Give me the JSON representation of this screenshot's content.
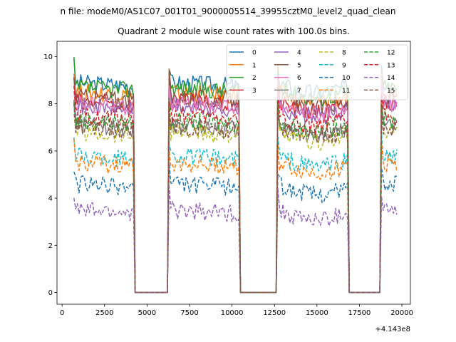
{
  "chart_data": {
    "type": "line",
    "suptitle": "n file: modeM0/AS1C07_001T01_9000005514_39955cztM0_level2_quad_clean",
    "title": "Quadrant 2 module wise count rates with 100.0s bins.",
    "xlabel": "",
    "ylabel": "",
    "x_offset_label": "+4.143e8",
    "xlim": [
      -300,
      20500
    ],
    "ylim": [
      -0.5,
      10.65
    ],
    "xticks": [
      0,
      2500,
      5000,
      7500,
      10000,
      12500,
      15000,
      17500,
      20000
    ],
    "xtick_labels": [
      "0",
      "2500",
      "5000",
      "7500",
      "10000",
      "12500",
      "15000",
      "17500",
      "20000"
    ],
    "yticks": [
      0,
      2,
      4,
      6,
      8,
      10
    ],
    "ytick_labels": [
      "0",
      "2",
      "4",
      "6",
      "8",
      "10"
    ],
    "bin_width": 100,
    "active_segments": [
      {
        "start": 700,
        "end": 4200
      },
      {
        "start": 6300,
        "end": 10400
      },
      {
        "start": 12700,
        "end": 16800
      },
      {
        "start": 18800,
        "end": 19700
      }
    ],
    "gap_value": 0,
    "legend": {
      "location": "upper right",
      "columns": 4
    },
    "series": [
      {
        "name": "0",
        "color": "#1f77b4",
        "style": "solid",
        "level": 8.9
      },
      {
        "name": "1",
        "color": "#ff7f0e",
        "style": "solid",
        "level": 8.5
      },
      {
        "name": "2",
        "color": "#2ca02c",
        "style": "solid",
        "level": 8.7
      },
      {
        "name": "3",
        "color": "#d62728",
        "style": "solid",
        "level": 8.1
      },
      {
        "name": "4",
        "color": "#9467bd",
        "style": "solid",
        "level": 7.9
      },
      {
        "name": "5",
        "color": "#8c564b",
        "style": "solid",
        "level": 8.3
      },
      {
        "name": "6",
        "color": "#e377c2",
        "style": "solid",
        "level": 8.0
      },
      {
        "name": "7",
        "color": "#7f7f7f",
        "style": "solid",
        "level": 7.1
      },
      {
        "name": "8",
        "color": "#bcbd22",
        "style": "dashed",
        "level": 6.8
      },
      {
        "name": "9",
        "color": "#17becf",
        "style": "dashed",
        "level": 5.8
      },
      {
        "name": "10",
        "color": "#1f77b4",
        "style": "dashed",
        "level": 4.6
      },
      {
        "name": "11",
        "color": "#ff7f0e",
        "style": "dashed",
        "level": 5.5
      },
      {
        "name": "12",
        "color": "#2ca02c",
        "style": "dashed",
        "level": 7.3
      },
      {
        "name": "13",
        "color": "#d62728",
        "style": "dashed",
        "level": 7.5
      },
      {
        "name": "14",
        "color": "#9467bd",
        "style": "dashed",
        "level": 3.5
      },
      {
        "name": "15",
        "color": "#8c564b",
        "style": "dashed",
        "level": 7.0
      }
    ]
  }
}
